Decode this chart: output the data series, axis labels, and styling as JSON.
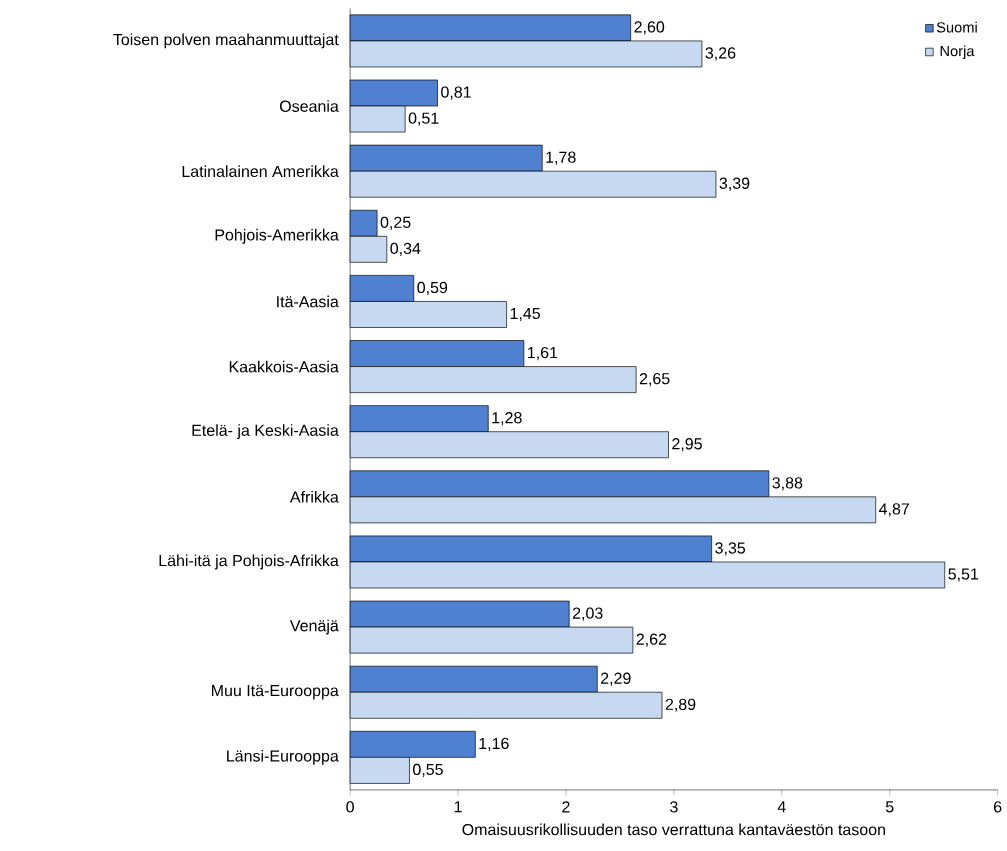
{
  "chart_data": {
    "type": "bar",
    "orientation": "horizontal",
    "xlabel": "Omaisuusrikollisuuden  taso verrattuna  kantaväestön  tasoon",
    "categories": [
      "Toisen polven maahanmuuttajat",
      "Oseania",
      "Latinalainen Amerikka",
      "Pohjois-Amerikka",
      "Itä-Aasia",
      "Kaakkois-Aasia",
      "Etelä- ja Keski-Aasia",
      "Afrikka",
      "Lähi-itä ja Pohjois-Afrikka",
      "Venäjä",
      "Muu Itä-Eurooppa",
      "Länsi-Eurooppa"
    ],
    "series": [
      {
        "name": "Suomi",
        "color": "#4f81d0",
        "values": [
          2.6,
          0.81,
          1.78,
          0.25,
          0.59,
          1.61,
          1.28,
          3.88,
          3.35,
          2.03,
          2.29,
          1.16
        ],
        "value_labels": [
          "2,60",
          "0,81",
          "1,78",
          "0,25",
          "0,59",
          "1,61",
          "1,28",
          "3,88",
          "3,35",
          "2,03",
          "2,29",
          "1,16"
        ]
      },
      {
        "name": "Norja",
        "color": "#c6d9f1",
        "values": [
          3.26,
          0.51,
          3.39,
          0.34,
          1.45,
          2.65,
          2.95,
          4.87,
          5.51,
          2.62,
          2.89,
          0.55
        ],
        "value_labels": [
          "3,26",
          "0,51",
          "3,39",
          "0,34",
          "1,45",
          "2,65",
          "2,95",
          "4,87",
          "5,51",
          "2,62",
          "2,89",
          "0,55"
        ]
      }
    ],
    "xlim": [
      0,
      6
    ],
    "xticks": [
      0,
      1,
      2,
      3,
      4,
      5,
      6
    ],
    "legend": "top right",
    "grid": false
  }
}
